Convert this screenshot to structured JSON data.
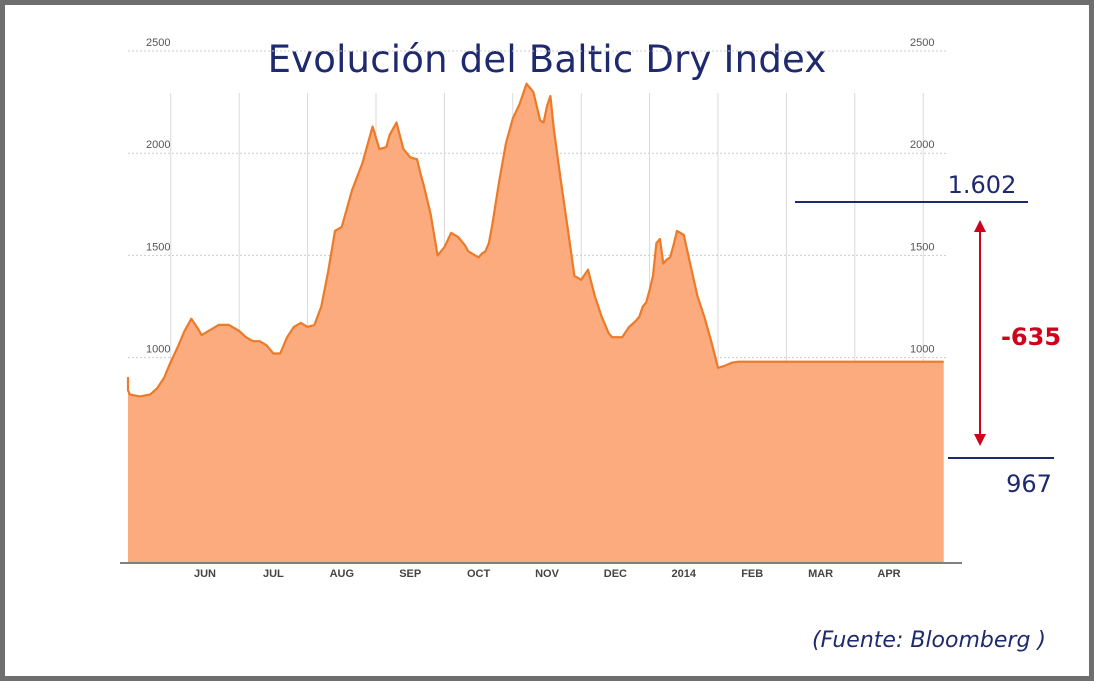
{
  "title": "Evolución del Baltic Dry Index",
  "source": "(Fuente: Bloomberg )",
  "colors": {
    "fill": "#fbab7e",
    "line": "#ec7a28",
    "navy": "#1f2a6e",
    "red": "#d0021b"
  },
  "chart_data": {
    "type": "area",
    "title": "Evolución del Baltic Dry Index",
    "ylim": [
      0,
      2700
    ],
    "yticks": [
      1000,
      1500,
      2000,
      2500
    ],
    "ytick_labels": [
      "1000",
      "1500",
      "2000",
      "2500"
    ],
    "grid": true,
    "months": [
      {
        "label": "JUN",
        "x": 1
      },
      {
        "label": "JUL",
        "x": 2
      },
      {
        "label": "AUG",
        "x": 3
      },
      {
        "label": "SEP",
        "x": 4
      },
      {
        "label": "OCT",
        "x": 5
      },
      {
        "label": "NOV",
        "x": 6
      },
      {
        "label": "DEC",
        "x": 7
      },
      {
        "label": "2014",
        "x": 8
      },
      {
        "label": "FEB",
        "x": 9
      },
      {
        "label": "MAR",
        "x": 10
      },
      {
        "label": "APR",
        "x": 11
      }
    ],
    "x": [
      -0.95,
      -0.85,
      -0.7,
      -0.55,
      -0.4,
      -0.25,
      -0.1,
      0.05,
      0.2,
      0.3,
      0.4,
      0.5,
      0.6,
      0.7,
      0.8,
      0.9,
      0.95,
      1.0,
      1.05,
      1.2,
      1.35,
      1.5,
      1.6,
      1.7,
      1.8,
      1.9,
      2.0,
      2.1,
      2.2,
      2.3,
      2.4,
      2.5,
      2.6,
      2.7,
      2.8,
      2.9,
      3.0,
      3.15,
      3.3,
      3.45,
      3.55,
      3.65,
      3.7,
      3.8,
      3.9,
      4.0,
      4.1,
      4.15,
      4.2,
      4.3,
      4.4,
      4.5,
      4.6,
      4.7,
      4.8,
      4.85,
      4.9,
      4.95,
      5.0,
      5.05,
      5.1,
      5.15,
      5.2,
      5.3,
      5.4,
      5.5,
      5.6,
      5.7,
      5.8,
      5.9,
      5.95,
      6.0,
      6.05,
      6.1,
      6.2,
      6.3,
      6.4,
      6.5,
      6.6,
      6.7,
      6.8,
      6.9,
      6.95,
      7.0,
      7.05,
      7.1,
      7.2,
      7.3,
      7.35,
      7.4,
      7.45,
      7.5,
      7.55,
      7.6,
      7.65,
      7.7,
      7.75,
      7.8,
      7.85,
      7.9,
      8.0,
      8.1,
      8.2,
      8.3,
      8.4,
      8.5,
      8.6,
      8.7,
      8.8,
      8.9,
      9.0,
      9.1,
      9.2,
      9.3,
      9.4,
      9.5,
      9.6,
      9.7,
      9.8,
      9.9,
      10.0,
      10.1,
      10.2,
      10.25,
      10.3,
      10.4,
      10.5,
      10.55,
      10.6,
      10.7,
      10.8,
      10.9,
      11.0,
      11.1,
      11.2,
      11.3,
      11.4,
      11.5,
      11.6,
      11.7,
      11.8
    ],
    "series": [
      {
        "values": [
          880,
          880,
          900,
          880,
          850,
          840,
          820,
          810,
          820,
          850,
          900,
          980,
          1050,
          1130,
          1190,
          1140,
          1110,
          1120,
          1130,
          1160,
          1160,
          1130,
          1100,
          1080,
          1080,
          1060,
          1020,
          1020,
          1100,
          1150,
          1170,
          1150,
          1160,
          1250,
          1420,
          1620,
          1640,
          1820,
          1950,
          2130,
          2020,
          2030,
          2090,
          2150,
          2020,
          1980,
          1970,
          1900,
          1840,
          1700,
          1500,
          1540,
          1610,
          1590,
          1550,
          1520,
          1510,
          1500,
          1490,
          1510,
          1520,
          1560,
          1650,
          1860,
          2050,
          2170,
          2240,
          2340,
          2300,
          2160,
          2150,
          2230,
          2280,
          2120,
          1870,
          1640,
          1400,
          1380,
          1430,
          1300,
          1200,
          1120,
          1100,
          1100,
          1100,
          1100,
          1150,
          1180,
          1200,
          1250,
          1270,
          1330,
          1400,
          1560,
          1580,
          1460,
          1480,
          1490,
          1550,
          1620,
          1600,
          1450,
          1300,
          1200,
          1080,
          950,
          960,
          975,
          980,
          980,
          980,
          980,
          980,
          980,
          980,
          980,
          980,
          980,
          980,
          980,
          980,
          980,
          980,
          980,
          980,
          980,
          980,
          980,
          980,
          980,
          980,
          980,
          980,
          980,
          980,
          980,
          980,
          980,
          980,
          980,
          980
        ]
      }
    ]
  },
  "annotations": {
    "top_value": "1.602",
    "bottom_value": "967",
    "difference": "-635"
  }
}
